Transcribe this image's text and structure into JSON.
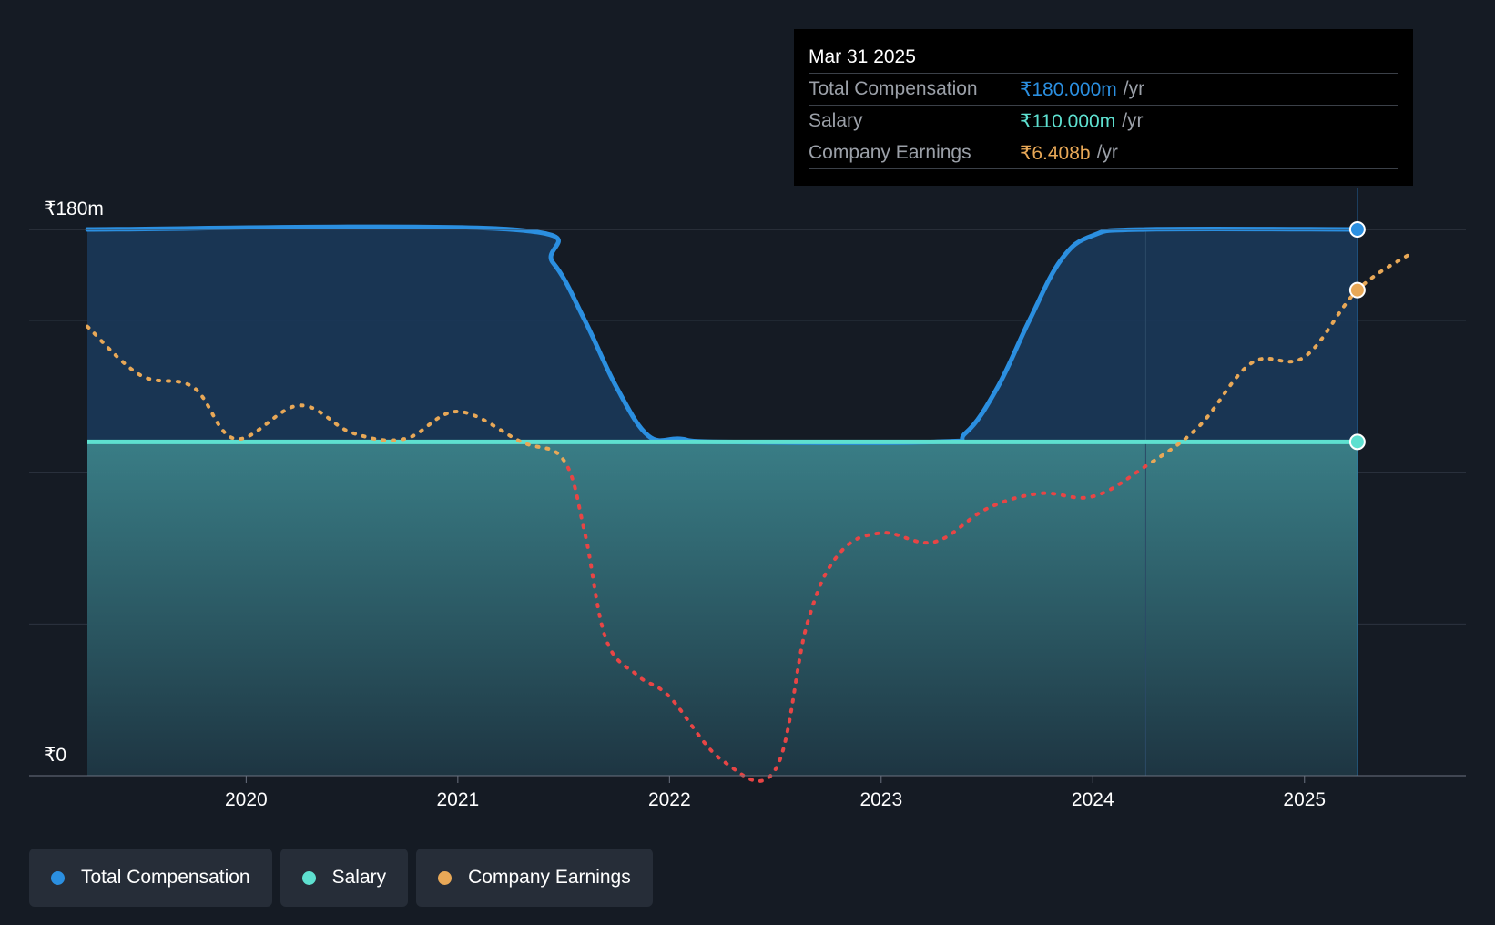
{
  "chart_data": {
    "type": "area",
    "title": "",
    "xlabel": "",
    "ylabel": "",
    "x_ticks": [
      "2020",
      "2021",
      "2022",
      "2023",
      "2024",
      "2025"
    ],
    "x_range": [
      2019.25,
      2025.5
    ],
    "y_range": [
      0,
      180
    ],
    "y_tick_labels": {
      "top": "₹180m",
      "bottom": "₹0"
    },
    "gridlines": [
      0,
      50,
      100,
      150,
      180
    ],
    "series": [
      {
        "name": "Total Compensation",
        "key": "total",
        "color": "#2b8fe0",
        "style": "solid-area",
        "points": [
          [
            2019.25,
            180
          ],
          [
            2021.25,
            180
          ],
          [
            2021.45,
            169
          ],
          [
            2021.6,
            150
          ],
          [
            2021.75,
            128
          ],
          [
            2021.9,
            112
          ],
          [
            2022.05,
            111
          ],
          [
            2022.25,
            110
          ],
          [
            2023.25,
            110
          ],
          [
            2023.4,
            113
          ],
          [
            2023.55,
            128
          ],
          [
            2023.7,
            150
          ],
          [
            2023.85,
            170
          ],
          [
            2024.0,
            178
          ],
          [
            2024.25,
            180
          ],
          [
            2025.25,
            180
          ]
        ]
      },
      {
        "name": "Salary",
        "key": "salary",
        "color": "#5ee0d0",
        "style": "solid-area",
        "points": [
          [
            2019.25,
            110
          ],
          [
            2025.25,
            110
          ]
        ]
      },
      {
        "name": "Company Earnings",
        "key": "earnings",
        "color": "#e8a857",
        "negative_color": "#e84545",
        "style": "dotted",
        "points": [
          [
            2019.25,
            148
          ],
          [
            2019.5,
            132
          ],
          [
            2019.75,
            128
          ],
          [
            2019.95,
            111
          ],
          [
            2020.25,
            122
          ],
          [
            2020.5,
            113
          ],
          [
            2020.75,
            111
          ],
          [
            2021.0,
            120
          ],
          [
            2021.3,
            110
          ],
          [
            2021.5,
            104
          ],
          [
            2021.6,
            80
          ],
          [
            2021.7,
            45
          ],
          [
            2021.85,
            33
          ],
          [
            2022.0,
            26
          ],
          [
            2022.25,
            5
          ],
          [
            2022.5,
            2
          ],
          [
            2022.65,
            50
          ],
          [
            2022.8,
            73
          ],
          [
            2023.0,
            80
          ],
          [
            2023.25,
            77
          ],
          [
            2023.5,
            88
          ],
          [
            2023.75,
            93
          ],
          [
            2024.0,
            92
          ],
          [
            2024.25,
            102
          ],
          [
            2024.5,
            115
          ],
          [
            2024.75,
            136
          ],
          [
            2025.0,
            138
          ],
          [
            2025.25,
            160
          ],
          [
            2025.5,
            172
          ]
        ]
      }
    ],
    "highlight_x": 2025.25
  },
  "tooltip": {
    "date": "Mar 31 2025",
    "rows": [
      {
        "label": "Total Compensation",
        "value": "₹180.000m",
        "unit": "/yr",
        "color": "#2b8fe0"
      },
      {
        "label": "Salary",
        "value": "₹110.000m",
        "unit": "/yr",
        "color": "#5ee0d0"
      },
      {
        "label": "Company Earnings",
        "value": "₹6.408b",
        "unit": "/yr",
        "color": "#e8a857"
      }
    ]
  },
  "legend": [
    {
      "label": "Total Compensation",
      "color": "#2b8fe0"
    },
    {
      "label": "Salary",
      "color": "#5ee0d0"
    },
    {
      "label": "Company Earnings",
      "color": "#e8a857"
    }
  ]
}
